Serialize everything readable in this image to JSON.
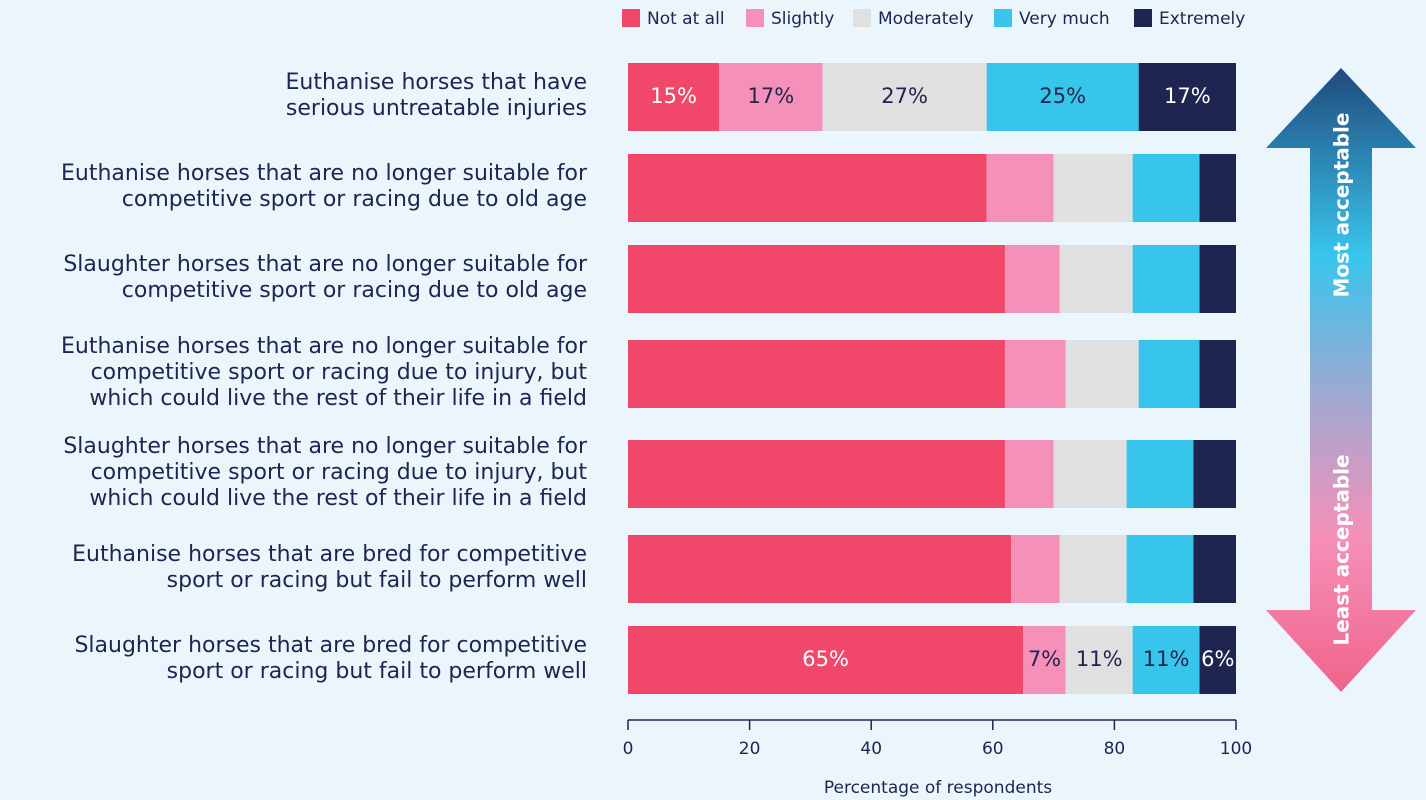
{
  "chart_data": {
    "type": "stacked_barh",
    "categories": [
      "Euthanise horses that have\nserious untreatable injuries",
      "Euthanise horses that are no longer suitable for\ncompetitive sport or racing due to old age",
      "Slaughter horses that are no longer suitable for\ncompetitive sport or racing due to old age",
      "Euthanise horses that are no longer suitable for\ncompetitive sport or racing due to injury, but\nwhich could live the rest of their life in a field",
      "Slaughter horses that are no longer suitable for\ncompetitive sport or racing due to injury, but\nwhich could live the rest of their life in a field",
      "Euthanise horses that are bred for competitive\nsport or racing but fail to perform well",
      "Slaughter horses that are bred for competitive\nsport or racing but fail to perform well"
    ],
    "series": [
      {
        "name": "Not at all",
        "color": "#f0476b",
        "values": [
          15,
          59,
          62,
          62,
          62,
          63,
          65
        ],
        "value_labels": [
          "15%",
          null,
          null,
          null,
          null,
          null,
          "65%"
        ]
      },
      {
        "name": "Slightly",
        "color": "#f590b8",
        "values": [
          17,
          11,
          9,
          10,
          8,
          8,
          7
        ],
        "value_labels": [
          "17%",
          null,
          null,
          null,
          null,
          null,
          "7%"
        ]
      },
      {
        "name": "Moderately",
        "color": "#e0e0e0",
        "values": [
          27,
          13,
          12,
          12,
          12,
          11,
          11
        ],
        "value_labels": [
          "27%",
          null,
          null,
          null,
          null,
          null,
          "11%"
        ]
      },
      {
        "name": "Very much",
        "color": "#38c5ec",
        "values": [
          25,
          11,
          11,
          10,
          11,
          11,
          11
        ],
        "value_labels": [
          "25%",
          null,
          null,
          null,
          null,
          null,
          "11%"
        ]
      },
      {
        "name": "Extremely",
        "color": "#1e2550",
        "values": [
          17,
          6,
          6,
          6,
          7,
          7,
          6
        ],
        "value_labels": [
          "17%",
          null,
          null,
          null,
          null,
          null,
          "6%"
        ]
      }
    ],
    "xlim": [
      0,
      100
    ],
    "xticks": [
      0,
      20,
      40,
      60,
      80,
      100
    ],
    "xlabel": "Percentage of respondents",
    "legend": "top",
    "annotations": [
      "Most acceptable",
      "Least acceptable"
    ]
  }
}
